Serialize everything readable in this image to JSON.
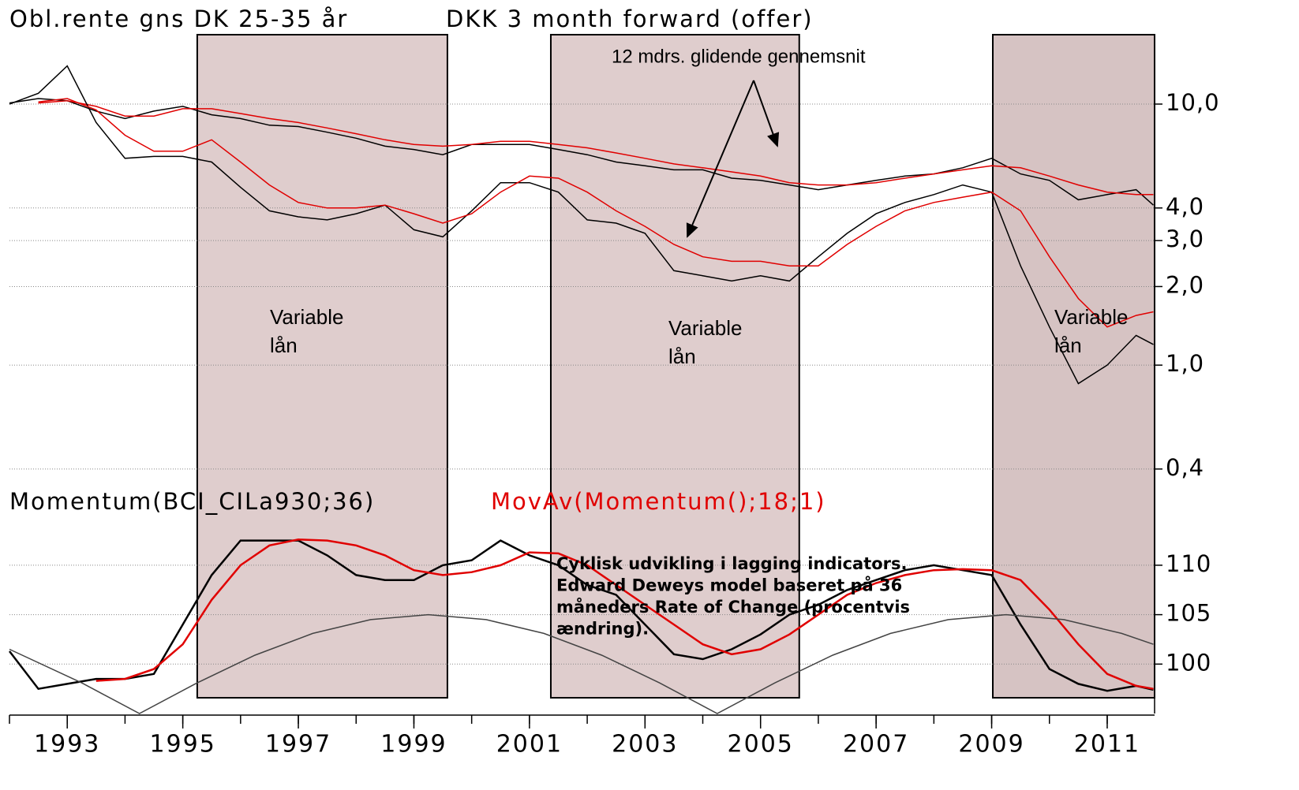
{
  "chart_data": [
    {
      "type": "line",
      "titles": [
        "Obl.rente gns DK 25-35 år",
        "DKK 3 month forward (offer)"
      ],
      "log_scale": true,
      "grid": true,
      "x": [
        1992,
        1992.5,
        1993,
        1993.5,
        1994,
        1994.5,
        1995,
        1995.5,
        1996,
        1996.5,
        1997,
        1997.5,
        1998,
        1998.5,
        1999,
        1999.5,
        2000,
        2000.5,
        2001,
        2001.5,
        2002,
        2002.5,
        2003,
        2003.5,
        2004,
        2004.5,
        2005,
        2005.5,
        2006,
        2006.5,
        2007,
        2007.5,
        2008,
        2008.5,
        2009,
        2009.5,
        2010,
        2010.5,
        2011,
        2011.5,
        2011.8
      ],
      "xlim": [
        1992,
        2011.82
      ],
      "ylim": [
        0.386,
        16.5
      ],
      "yticks": [
        {
          "value": 10,
          "label": "10,0"
        },
        {
          "value": 4,
          "label": "4,0"
        },
        {
          "value": 3,
          "label": "3,0"
        },
        {
          "value": 2,
          "label": "2,0"
        },
        {
          "value": 1,
          "label": "1,0"
        },
        {
          "value": 0.4,
          "label": "0,4"
        }
      ],
      "series": [
        {
          "color": "#000000",
          "values": [
            10.1,
            10.5,
            10.3,
            9.4,
            8.8,
            9.4,
            9.8,
            9.1,
            8.8,
            8.3,
            8.2,
            7.8,
            7.4,
            6.9,
            6.7,
            6.4,
            7.0,
            7.0,
            7.0,
            6.7,
            6.4,
            6.0,
            5.8,
            5.6,
            5.6,
            5.2,
            5.1,
            4.9,
            4.7,
            4.9,
            5.1,
            5.3,
            5.4,
            5.7,
            6.2,
            5.4,
            5.1,
            4.3,
            4.5,
            4.7,
            4.1
          ]
        },
        {
          "color": "#e00000",
          "values": [
            null,
            10.1,
            10.3,
            9.8,
            9.0,
            9.0,
            9.6,
            9.6,
            9.2,
            8.8,
            8.5,
            8.1,
            7.7,
            7.3,
            7.0,
            6.9,
            7.0,
            7.2,
            7.2,
            7.0,
            6.8,
            6.5,
            6.2,
            5.9,
            5.7,
            5.5,
            5.3,
            5.0,
            4.9,
            4.9,
            5.0,
            5.2,
            5.4,
            5.6,
            5.8,
            5.7,
            5.3,
            4.9,
            4.6,
            4.5,
            4.5
          ]
        },
        {
          "color": "#000000",
          "values": [
            10.0,
            11.0,
            14.0,
            8.5,
            6.2,
            6.3,
            6.3,
            6.0,
            4.8,
            3.9,
            3.7,
            3.6,
            3.8,
            4.1,
            3.3,
            3.1,
            3.9,
            5.0,
            5.0,
            4.6,
            3.6,
            3.5,
            3.2,
            2.3,
            2.2,
            2.1,
            2.2,
            2.1,
            2.6,
            3.2,
            3.8,
            4.2,
            4.5,
            4.9,
            4.6,
            2.4,
            1.4,
            0.85,
            1.0,
            1.3,
            1.2
          ]
        },
        {
          "color": "#e00000",
          "values": [
            null,
            10.2,
            10.5,
            9.5,
            7.6,
            6.6,
            6.6,
            7.3,
            6.0,
            4.9,
            4.2,
            4.0,
            4.0,
            4.1,
            3.8,
            3.5,
            3.8,
            4.6,
            5.3,
            5.2,
            4.6,
            3.9,
            3.4,
            2.9,
            2.6,
            2.5,
            2.5,
            2.4,
            2.4,
            2.9,
            3.4,
            3.9,
            4.2,
            4.4,
            4.6,
            3.9,
            2.6,
            1.8,
            1.4,
            1.55,
            1.6
          ]
        }
      ],
      "annotations": [
        [
          "12 mdrs. glidende gennemsnit"
        ],
        [
          "Variable",
          "lån"
        ],
        [
          "Variable",
          "lån"
        ],
        [
          "Variable",
          "lån"
        ]
      ]
    },
    {
      "type": "line",
      "grid": true,
      "x": [
        1992,
        1992.5,
        1993,
        1993.5,
        1994,
        1994.5,
        1995,
        1995.5,
        1996,
        1996.5,
        1997,
        1997.5,
        1998,
        1998.5,
        1999,
        1999.5,
        2000,
        2000.5,
        2001,
        2001.5,
        2002,
        2002.5,
        2003,
        2003.5,
        2004,
        2004.5,
        2005,
        2005.5,
        2006,
        2006.5,
        2007,
        2007.5,
        2008,
        2008.5,
        2009,
        2009.5,
        2010,
        2010.5,
        2011,
        2011.5,
        2011.8
      ],
      "xlim": [
        1992,
        2011.82
      ],
      "ylim": [
        95,
        113.9
      ],
      "yticks": [
        110,
        105,
        100
      ],
      "xticks": [
        1993,
        1995,
        1997,
        1999,
        2001,
        2003,
        2005,
        2007,
        2009,
        2011
      ],
      "xticks_minor": [
        1992,
        1993,
        1994,
        1995,
        1996,
        1997,
        1998,
        1999,
        2000,
        2001,
        2002,
        2003,
        2004,
        2005,
        2006,
        2007,
        2008,
        2009,
        2010,
        2011
      ],
      "series": [
        {
          "name": "Momentum(BCI_CILa930;36)",
          "color": "#000000",
          "values": [
            101.3,
            97.5,
            98,
            98.5,
            98.5,
            99,
            104,
            109,
            112.5,
            112.5,
            112.5,
            111,
            109,
            108.5,
            108.5,
            110,
            110.5,
            112.5,
            111,
            110,
            108,
            107,
            104,
            101,
            100.5,
            101.5,
            103,
            105,
            106,
            107.5,
            108.5,
            109.5,
            110,
            109.5,
            109,
            104,
            99.5,
            98,
            97.3,
            97.8,
            97.4
          ]
        },
        {
          "name": "MovAv(Momentum();18;1)",
          "color": "#e00000",
          "values": [
            null,
            null,
            null,
            98.3,
            98.5,
            99.5,
            102,
            106.5,
            110,
            112,
            112.6,
            112.5,
            112,
            111,
            109.5,
            109,
            109.3,
            110,
            111.3,
            111.2,
            110,
            108,
            106,
            104,
            102,
            101,
            101.5,
            103,
            105,
            107,
            108.2,
            109,
            109.5,
            109.6,
            109.5,
            108.5,
            105.5,
            102,
            99,
            97.8,
            97.5
          ]
        },
        {
          "color": "#444444",
          "x": [
            1992,
            1993.25,
            1994.25,
            1995.25,
            1996.25,
            1997.25,
            1998.25,
            1999.25,
            2000.25,
            2001.25,
            2002.25,
            2003.25,
            2004.25,
            2005.25,
            2006.25,
            2007.25,
            2008.25,
            2009.25,
            2010.25,
            2011.25,
            2011.8
          ],
          "values": [
            101.5,
            98.1,
            95,
            98.1,
            100.9,
            103.1,
            104.5,
            105,
            104.5,
            103.1,
            100.9,
            98.1,
            95,
            98.1,
            100.9,
            103.1,
            104.5,
            105,
            104.5,
            103.1,
            102.0
          ]
        }
      ],
      "note": [
        "Cyklisk udvikling i lagging indicators.",
        "Edward Deweys model baseret på 36",
        "måneders Rate of Change (procentvis",
        "ændring)."
      ]
    }
  ],
  "shaded_periods": [
    {
      "range": [
        1995.25,
        1999.58
      ],
      "color": "#dfcdcd"
    },
    {
      "range": [
        2001.37,
        2005.67
      ],
      "color": "#dfcdcd"
    },
    {
      "range": [
        2009.02,
        2011.82
      ],
      "color": "#d6c3c3"
    }
  ]
}
